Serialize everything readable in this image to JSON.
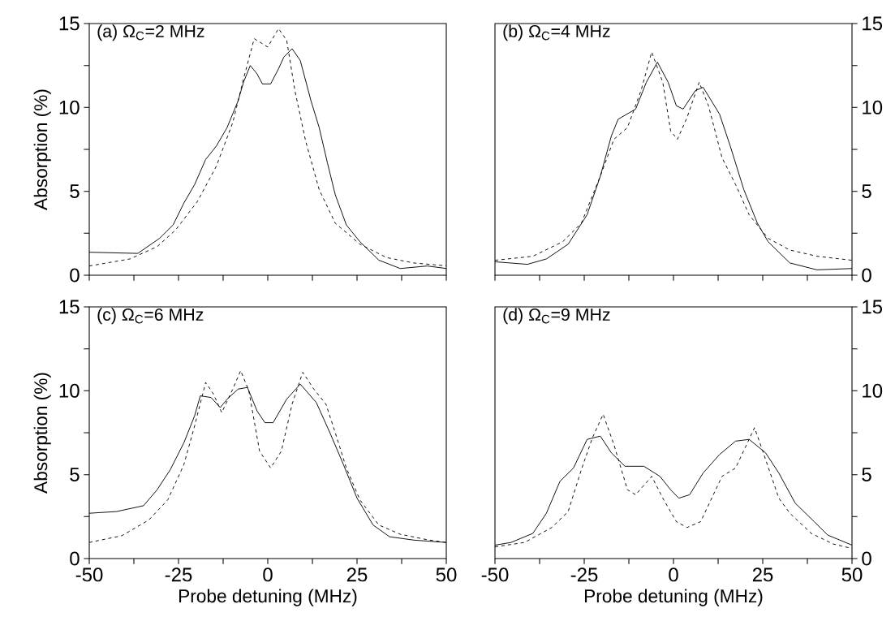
{
  "chart_data": [
    {
      "type": "line",
      "title": "(a) Ω$_{C}$=2 MHz",
      "ylabel": "Absorption (%)",
      "xlim": [
        -50,
        50
      ],
      "ylim": [
        0,
        15
      ],
      "xticks": [
        -50,
        {
          "value": -37.5,
          "label": null
        },
        -25,
        {
          "value": -12.5,
          "label": null
        },
        0,
        {
          "value": 12.5,
          "label": null
        },
        25,
        {
          "value": 37.5,
          "label": null
        },
        50
      ],
      "yticks": [
        0,
        {
          "value": 2.5,
          "label": null
        },
        5,
        {
          "value": 7.5,
          "label": null
        },
        10,
        {
          "value": 12.5,
          "label": null
        },
        15
      ],
      "tick_labels": "y",
      "series": [
        {
          "color": "#000000",
          "line_style": "solid",
          "x": [
            -50,
            -36.4,
            -30.3,
            -26.5,
            -23.5,
            -20.5,
            -17.4,
            -14.4,
            -11.4,
            -8.3,
            -6.8,
            -4.9,
            -3.0,
            -1.5,
            0.8,
            3.0,
            4.5,
            6.8,
            9.1,
            12.1,
            14.4,
            16.7,
            18.9,
            22.0,
            25.8,
            31.1,
            37.1,
            44.7,
            50
          ],
          "values": [
            1.37,
            1.3,
            2.2,
            3.0,
            4.3,
            5.4,
            6.9,
            7.7,
            8.8,
            10.4,
            11.5,
            12.5,
            12.0,
            11.4,
            11.4,
            12.3,
            13.0,
            13.5,
            12.8,
            10.4,
            8.8,
            6.7,
            4.8,
            3.0,
            2.0,
            0.9,
            0.4,
            0.55,
            0.4
          ]
        },
        {
          "color": "#000000",
          "line_style": "dashed",
          "x": [
            -50,
            -38.6,
            -31,
            -25.8,
            -19.7,
            -14.4,
            -9.8,
            -6.8,
            -3.8,
            0,
            3,
            5.3,
            7.6,
            10.6,
            14.4,
            18.9,
            25.8,
            33.3,
            40.9,
            50
          ],
          "values": [
            0.55,
            0.97,
            1.7,
            2.7,
            4.4,
            6.5,
            9.1,
            11.7,
            14.1,
            13.6,
            14.7,
            14.0,
            11.0,
            8.0,
            5.1,
            3.1,
            1.85,
            1.05,
            0.73,
            0.56
          ]
        }
      ]
    },
    {
      "type": "line",
      "title": "(b) Ω$_{C}$=4 MHz",
      "xlim": [
        -50,
        50
      ],
      "ylim": [
        0,
        15
      ],
      "xticks": [
        -50,
        {
          "value": -37.5,
          "label": null
        },
        -25,
        {
          "value": -12.5,
          "label": null
        },
        0,
        {
          "value": 12.5,
          "label": null
        },
        25,
        {
          "value": 37.5,
          "label": null
        },
        50
      ],
      "yticks": [
        0,
        {
          "value": 2.5,
          "label": null
        },
        5,
        {
          "value": 7.5,
          "label": null
        },
        10,
        {
          "value": 12.5,
          "label": null
        },
        15
      ],
      "tick_labels": "y",
      "series": [
        {
          "color": "#000000",
          "line_style": "solid",
          "x": [
            -50,
            -40.9,
            -35.6,
            -29.5,
            -24.2,
            -20.5,
            -17.4,
            -15.5,
            -10.6,
            -7.6,
            -4.5,
            -1.5,
            0.8,
            2.7,
            6.1,
            8.3,
            12.9,
            15.9,
            19.7,
            23.5,
            26.5,
            29.5,
            32.6,
            40.2,
            50
          ],
          "values": [
            0.8,
            0.65,
            0.97,
            1.85,
            3.6,
            5.9,
            8.3,
            9.3,
            9.9,
            11.5,
            12.7,
            11.5,
            10.1,
            9.9,
            11.0,
            11.2,
            9.6,
            7.7,
            5.1,
            3.1,
            2.0,
            1.37,
            0.73,
            0.32,
            0.4
          ]
        },
        {
          "color": "#000000",
          "line_style": "dashed",
          "x": [
            -50,
            -39.4,
            -31,
            -25.8,
            -20.5,
            -16.7,
            -12.9,
            -9.1,
            -6.1,
            -3,
            -0.8,
            1.1,
            3.8,
            7.2,
            9.8,
            13.6,
            17.4,
            21.2,
            26.5,
            32.6,
            40.2,
            50
          ],
          "values": [
            0.89,
            1.13,
            2.0,
            3.1,
            5.9,
            8.1,
            8.8,
            11.0,
            13.3,
            11.5,
            8.6,
            8.1,
            9.4,
            11.5,
            10.1,
            7.0,
            5.4,
            3.6,
            2.2,
            1.5,
            1.13,
            0.89
          ]
        }
      ]
    },
    {
      "type": "line",
      "title": "(c) Ω$_{C}$=6 MHz",
      "xlabel": "Probe detuning (MHz)",
      "ylabel": "Absorption (%)",
      "xlim": [
        -50,
        50
      ],
      "ylim": [
        0,
        15
      ],
      "xticks": [
        -50,
        {
          "value": -37.5,
          "label": null
        },
        -25,
        {
          "value": -12.5,
          "label": null
        },
        0,
        {
          "value": 12.5,
          "label": null
        },
        25,
        {
          "value": 37.5,
          "label": null
        },
        50
      ],
      "yticks": [
        0,
        {
          "value": 2.5,
          "label": null
        },
        5,
        {
          "value": 7.5,
          "label": null
        },
        10,
        {
          "value": 12.5,
          "label": null
        },
        15
      ],
      "series": [
        {
          "color": "#000000",
          "line_style": "solid",
          "x": [
            -50,
            -42.4,
            -34.8,
            -31,
            -27.3,
            -23.5,
            -20.5,
            -18.9,
            -15.9,
            -13.3,
            -11.4,
            -8.3,
            -5.7,
            -3,
            -0.8,
            1.5,
            5.3,
            9.1,
            13.6,
            17.4,
            21.2,
            25,
            29.5,
            34.1,
            40.9,
            50
          ],
          "values": [
            2.7,
            2.8,
            3.15,
            4.1,
            5.3,
            6.9,
            8.5,
            9.7,
            9.6,
            9.0,
            9.5,
            10.1,
            10.2,
            8.8,
            8.1,
            8.1,
            9.5,
            10.4,
            9.3,
            7.5,
            5.6,
            3.6,
            2.0,
            1.3,
            1.1,
            0.96
          ]
        },
        {
          "color": "#000000",
          "line_style": "dashed",
          "x": [
            -50,
            -40.9,
            -33.3,
            -28,
            -23.5,
            -20.5,
            -17.4,
            -15.2,
            -12.9,
            -9.8,
            -7.6,
            -5.3,
            -2.3,
            0.8,
            3.8,
            6.8,
            9.8,
            12.9,
            16.3,
            18.9,
            22,
            25.8,
            31.1,
            37.1,
            44.7,
            50
          ],
          "values": [
            0.96,
            1.36,
            2.3,
            3.5,
            5.6,
            7.9,
            10.5,
            9.8,
            8.7,
            10.1,
            11.2,
            10.0,
            6.4,
            5.4,
            6.4,
            9.2,
            11.1,
            10.1,
            9.2,
            7.5,
            5.4,
            3.5,
            2.0,
            1.45,
            1.12,
            0.96
          ]
        }
      ]
    },
    {
      "type": "line",
      "title": "(d) Ω$_{C}$=9 MHz",
      "xlabel": "Probe detuning (MHz)",
      "xlim": [
        -50,
        50
      ],
      "ylim": [
        0,
        15
      ],
      "xticks": [
        -50,
        {
          "value": -37.5,
          "label": null
        },
        -25,
        {
          "value": -12.5,
          "label": null
        },
        0,
        {
          "value": 12.5,
          "label": null
        },
        25,
        {
          "value": 37.5,
          "label": null
        },
        50
      ],
      "yticks": [
        0,
        {
          "value": 2.5,
          "label": null
        },
        5,
        {
          "value": 7.5,
          "label": null
        },
        10,
        {
          "value": 12.5,
          "label": null
        },
        15
      ],
      "series": [
        {
          "color": "#000000",
          "line_style": "solid",
          "x": [
            -50,
            -45.5,
            -39.4,
            -35.6,
            -31.8,
            -28,
            -24.2,
            -20.5,
            -17.4,
            -13.6,
            -8.3,
            -3.8,
            -0.8,
            1.5,
            4.5,
            8.3,
            12.9,
            17.4,
            21.2,
            25.8,
            29.5,
            34.1,
            39.4,
            43.2,
            50
          ],
          "values": [
            0.8,
            0.96,
            1.5,
            2.7,
            4.6,
            5.4,
            7.1,
            7.3,
            6.3,
            5.5,
            5.5,
            4.9,
            4.1,
            3.6,
            3.8,
            5.1,
            6.2,
            7.0,
            7.1,
            6.3,
            5.1,
            3.3,
            2.2,
            1.4,
            0.8
          ]
        },
        {
          "color": "#000000",
          "line_style": "dashed",
          "x": [
            -50,
            -41.7,
            -34.1,
            -29.5,
            -25.8,
            -22.7,
            -19.7,
            -16.7,
            -12.9,
            -10.6,
            -6.1,
            -3,
            0.8,
            3.8,
            7.6,
            13.6,
            17.4,
            20.5,
            22.7,
            25,
            29.5,
            32.6,
            38.6,
            44.7,
            50
          ],
          "values": [
            0.7,
            0.96,
            1.85,
            2.8,
            5.3,
            7.2,
            8.6,
            6.8,
            4.1,
            3.8,
            4.9,
            3.6,
            2.2,
            1.85,
            2.2,
            4.9,
            5.4,
            6.8,
            7.8,
            6.4,
            3.6,
            2.7,
            1.5,
            0.87,
            0.6
          ]
        }
      ]
    }
  ]
}
